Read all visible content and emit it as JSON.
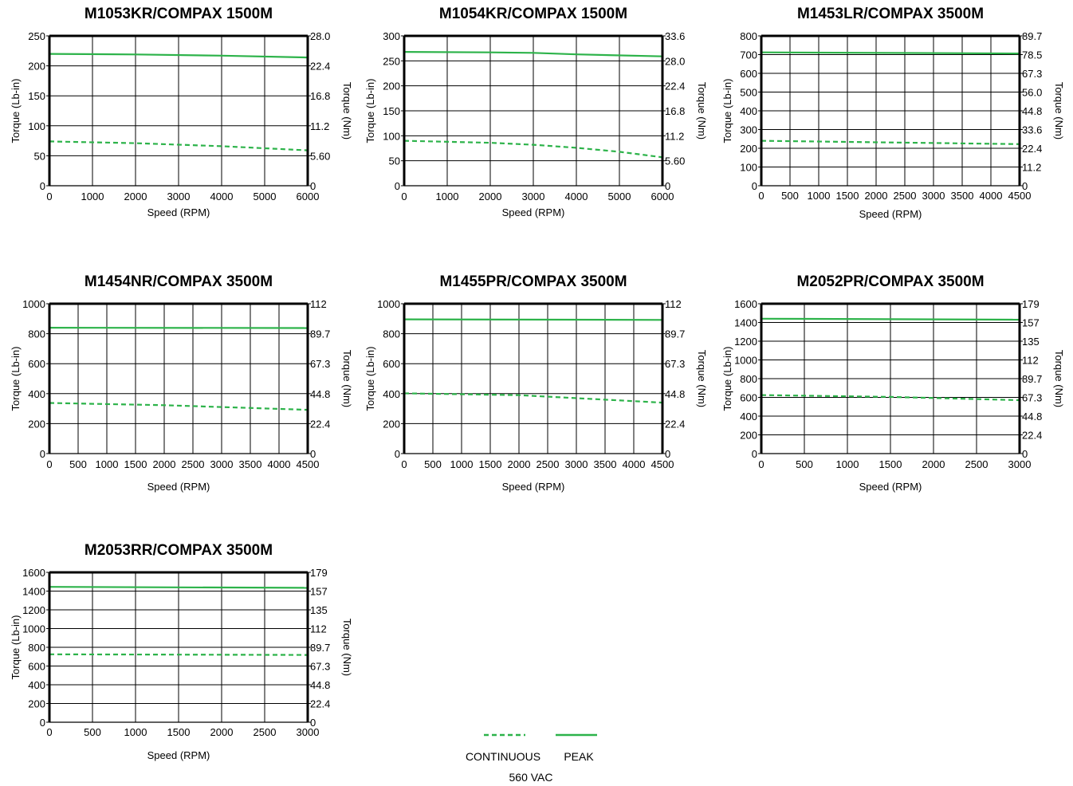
{
  "colors": {
    "series": "#2db34a",
    "grid": "#000000"
  },
  "legend": {
    "continuous_label": "CONTINUOUS",
    "peak_label": "PEAK",
    "voltage_label": "560 VAC"
  },
  "chart_data": [
    {
      "type": "line",
      "title": "M1053KR/COMPAX 1500M",
      "xlabel": "Speed (RPM)",
      "ylabel": "Torque (Lb-in)",
      "y2label": "Torque (Nm)",
      "xlim": [
        0,
        6000
      ],
      "ylim": [
        0,
        250
      ],
      "xticks": [
        0,
        1000,
        2000,
        3000,
        4000,
        5000,
        6000
      ],
      "yticks": [
        0,
        50,
        100,
        150,
        200,
        250
      ],
      "y2ticks": [
        "0",
        "5.60",
        "11.2",
        "16.8",
        "22.4",
        "28.0"
      ],
      "series": [
        {
          "name": "PEAK",
          "style": "solid",
          "x": [
            0,
            2000,
            4000,
            6000
          ],
          "y": [
            220,
            219,
            217,
            214
          ]
        },
        {
          "name": "CONTINUOUS",
          "style": "dashed",
          "x": [
            0,
            2000,
            4000,
            6000
          ],
          "y": [
            74,
            71,
            66,
            59
          ]
        }
      ]
    },
    {
      "type": "line",
      "title": "M1054KR/COMPAX 1500M",
      "xlabel": "Speed (RPM)",
      "ylabel": "Torque (Lb-in)",
      "y2label": "Torque (Nm)",
      "xlim": [
        0,
        6000
      ],
      "ylim": [
        0,
        300
      ],
      "xticks": [
        0,
        1000,
        2000,
        3000,
        4000,
        5000,
        6000
      ],
      "yticks": [
        0,
        50,
        100,
        150,
        200,
        250,
        300
      ],
      "y2ticks": [
        "0",
        "5.60",
        "11.2",
        "16.8",
        "22.4",
        "28.0",
        "33.6"
      ],
      "series": [
        {
          "name": "PEAK",
          "style": "solid",
          "x": [
            0,
            2000,
            3000,
            4000,
            6000
          ],
          "y": [
            268,
            267,
            266,
            263,
            259
          ]
        },
        {
          "name": "CONTINUOUS",
          "style": "dashed",
          "x": [
            0,
            2000,
            3000,
            4000,
            5000,
            6000
          ],
          "y": [
            90,
            86,
            82,
            76,
            68,
            57
          ]
        }
      ]
    },
    {
      "type": "line",
      "title": "M1453LR/COMPAX 3500M",
      "xlabel": "Speed (RPM)",
      "ylabel": "Torque (Lb-in)",
      "y2label": "Torque (Nm)",
      "xlim": [
        0,
        4500
      ],
      "ylim": [
        0,
        800
      ],
      "xticks": [
        0,
        500,
        1000,
        1500,
        2000,
        2500,
        3000,
        3500,
        4000,
        4500
      ],
      "yticks": [
        0,
        100,
        200,
        300,
        400,
        500,
        600,
        700,
        800
      ],
      "y2ticks": [
        "0",
        "11.2",
        "22.4",
        "33.6",
        "44.8",
        "56.0",
        "67.3",
        "78.5",
        "89.7"
      ],
      "series": [
        {
          "name": "PEAK",
          "style": "solid",
          "x": [
            0,
            4500
          ],
          "y": [
            712,
            706
          ]
        },
        {
          "name": "CONTINUOUS",
          "style": "dashed",
          "x": [
            0,
            4500
          ],
          "y": [
            240,
            222
          ]
        }
      ]
    },
    {
      "type": "line",
      "title": "M1454NR/COMPAX 3500M",
      "xlabel": "Speed (RPM)",
      "ylabel": "Torque (Lb-in)",
      "y2label": "Torque (Nm)",
      "xlim": [
        0,
        4500
      ],
      "ylim": [
        0,
        1000
      ],
      "xticks": [
        0,
        500,
        1000,
        1500,
        2000,
        2500,
        3000,
        3500,
        4000,
        4500
      ],
      "yticks": [
        0,
        200,
        400,
        600,
        800,
        1000
      ],
      "y2ticks": [
        "0",
        "22.4",
        "44.8",
        "67.3",
        "89.7",
        "112"
      ],
      "series": [
        {
          "name": "PEAK",
          "style": "solid",
          "x": [
            0,
            4500
          ],
          "y": [
            840,
            838
          ]
        },
        {
          "name": "CONTINUOUS",
          "style": "dashed",
          "x": [
            0,
            2000,
            4500
          ],
          "y": [
            338,
            323,
            292
          ]
        }
      ]
    },
    {
      "type": "line",
      "title": "M1455PR/COMPAX 3500M",
      "xlabel": "Speed (RPM)",
      "ylabel": "Torque (Lb-in)",
      "y2label": "Torque (Nm)",
      "xlim": [
        0,
        4500
      ],
      "ylim": [
        0,
        1000
      ],
      "xticks": [
        0,
        500,
        1000,
        1500,
        2000,
        2500,
        3000,
        3500,
        4000,
        4500
      ],
      "yticks": [
        0,
        200,
        400,
        600,
        800,
        1000
      ],
      "y2ticks": [
        "0",
        "22.4",
        "44.8",
        "67.3",
        "89.7",
        "112"
      ],
      "series": [
        {
          "name": "PEAK",
          "style": "solid",
          "x": [
            0,
            4500
          ],
          "y": [
            896,
            892
          ]
        },
        {
          "name": "CONTINUOUS",
          "style": "dashed",
          "x": [
            0,
            2000,
            4500
          ],
          "y": [
            402,
            390,
            340
          ]
        }
      ]
    },
    {
      "type": "line",
      "title": "M2052PR/COMPAX 3500M",
      "xlabel": "Speed (RPM)",
      "ylabel": "Torque (Lb-in)",
      "y2label": "Torque (Nm)",
      "xlim": [
        0,
        3000
      ],
      "ylim": [
        0,
        1600
      ],
      "xticks": [
        0,
        500,
        1000,
        1500,
        2000,
        2500,
        3000
      ],
      "yticks": [
        0,
        200,
        400,
        600,
        800,
        1000,
        1200,
        1400,
        1600
      ],
      "y2ticks": [
        "0",
        "22.4",
        "44.8",
        "67.3",
        "89.7",
        "112",
        "135",
        "157",
        "179"
      ],
      "series": [
        {
          "name": "PEAK",
          "style": "solid",
          "x": [
            0,
            3000
          ],
          "y": [
            1440,
            1430
          ]
        },
        {
          "name": "CONTINUOUS",
          "style": "dashed",
          "x": [
            0,
            1500,
            3000
          ],
          "y": [
            625,
            605,
            570
          ]
        }
      ]
    },
    {
      "type": "line",
      "title": "M2053RR/COMPAX 3500M",
      "xlabel": "Speed (RPM)",
      "ylabel": "Torque (Lb-in)",
      "y2label": "Torque (Nm)",
      "xlim": [
        0,
        3000
      ],
      "ylim": [
        0,
        1600
      ],
      "xticks": [
        0,
        500,
        1000,
        1500,
        2000,
        2500,
        3000
      ],
      "yticks": [
        0,
        200,
        400,
        600,
        800,
        1000,
        1200,
        1400,
        1600
      ],
      "y2ticks": [
        "0",
        "22.4",
        "44.8",
        "67.3",
        "89.7",
        "112",
        "135",
        "157",
        "179"
      ],
      "series": [
        {
          "name": "PEAK",
          "style": "solid",
          "x": [
            0,
            3000
          ],
          "y": [
            1445,
            1435
          ]
        },
        {
          "name": "CONTINUOUS",
          "style": "dashed",
          "x": [
            0,
            3000
          ],
          "y": [
            725,
            718
          ]
        }
      ]
    }
  ]
}
